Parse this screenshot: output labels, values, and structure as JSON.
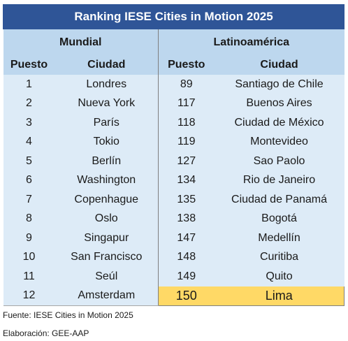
{
  "title": "Ranking IESE Cities in Motion 2025",
  "groups": {
    "left": "Mundial",
    "right": "Latinoamérica"
  },
  "headers": {
    "left_rank": "Puesto",
    "left_city": "Ciudad",
    "right_rank": "Puesto",
    "right_city": "Ciudad"
  },
  "rows": [
    {
      "world_rank": "1",
      "world_city": "Londres",
      "latam_rank": "89",
      "latam_city": "Santiago de Chile"
    },
    {
      "world_rank": "2",
      "world_city": "Nueva York",
      "latam_rank": "117",
      "latam_city": "Buenos Aires"
    },
    {
      "world_rank": "3",
      "world_city": "París",
      "latam_rank": "118",
      "latam_city": "Ciudad de México"
    },
    {
      "world_rank": "4",
      "world_city": "Tokio",
      "latam_rank": "119",
      "latam_city": "Montevideo"
    },
    {
      "world_rank": "5",
      "world_city": "Berlín",
      "latam_rank": "127",
      "latam_city": "Sao Paolo"
    },
    {
      "world_rank": "6",
      "world_city": "Washington",
      "latam_rank": "134",
      "latam_city": "Rio de Janeiro"
    },
    {
      "world_rank": "7",
      "world_city": "Copenhague",
      "latam_rank": "135",
      "latam_city": "Ciudad de Panamá"
    },
    {
      "world_rank": "8",
      "world_city": "Oslo",
      "latam_rank": "138",
      "latam_city": "Bogotá"
    },
    {
      "world_rank": "9",
      "world_city": "Singapur",
      "latam_rank": "147",
      "latam_city": "Medellín"
    },
    {
      "world_rank": "10",
      "world_city": "San Francisco",
      "latam_rank": "148",
      "latam_city": "Curitiba"
    },
    {
      "world_rank": "11",
      "world_city": "Seúl",
      "latam_rank": "149",
      "latam_city": "Quito"
    },
    {
      "world_rank": "12",
      "world_city": "Amsterdam",
      "latam_rank": "150",
      "latam_city": "Lima",
      "highlight": true
    }
  ],
  "colors": {
    "title_bg": "#2f5597",
    "header_bg": "#bdd7ee",
    "row_bg": "#ddebf7",
    "highlight_bg": "#ffd966"
  },
  "notes": {
    "source": "Fuente: IESE Cities in Motion 2025",
    "author": "Elaboración: GEE-AAP"
  }
}
